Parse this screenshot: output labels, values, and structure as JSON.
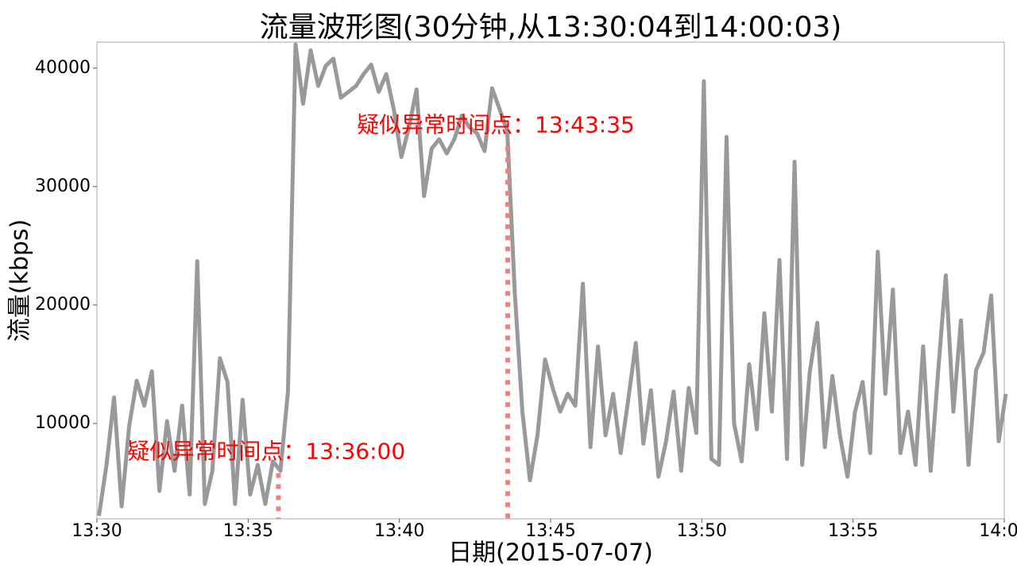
{
  "chart_data": {
    "type": "line",
    "title": "流量波形图(30分钟,从13:30:04到14:00:03)",
    "x_label": "日期(2015-07-07)",
    "y_label": "流量(kbps)",
    "x": [
      "13:30:04",
      "13:30:19",
      "13:30:34",
      "13:30:49",
      "13:31:04",
      "13:31:19",
      "13:31:34",
      "13:31:49",
      "13:32:04",
      "13:32:19",
      "13:32:34",
      "13:32:49",
      "13:33:04",
      "13:33:19",
      "13:33:34",
      "13:33:49",
      "13:34:04",
      "13:34:19",
      "13:34:34",
      "13:34:49",
      "13:35:04",
      "13:35:19",
      "13:35:34",
      "13:35:49",
      "13:36:04",
      "13:36:19",
      "13:36:34",
      "13:36:49",
      "13:37:04",
      "13:37:19",
      "13:37:34",
      "13:37:49",
      "13:38:04",
      "13:38:19",
      "13:38:34",
      "13:38:49",
      "13:39:04",
      "13:39:19",
      "13:39:34",
      "13:39:49",
      "13:40:04",
      "13:40:19",
      "13:40:34",
      "13:40:49",
      "13:41:04",
      "13:41:19",
      "13:41:34",
      "13:41:49",
      "13:42:04",
      "13:42:19",
      "13:42:34",
      "13:42:49",
      "13:43:04",
      "13:43:19",
      "13:43:34",
      "13:43:49",
      "13:44:04",
      "13:44:19",
      "13:44:34",
      "13:44:49",
      "13:45:04",
      "13:45:19",
      "13:45:34",
      "13:45:49",
      "13:46:04",
      "13:46:19",
      "13:46:34",
      "13:46:49",
      "13:47:04",
      "13:47:19",
      "13:47:34",
      "13:47:49",
      "13:48:04",
      "13:48:19",
      "13:48:34",
      "13:48:49",
      "13:49:04",
      "13:49:19",
      "13:49:34",
      "13:49:49",
      "13:50:04",
      "13:50:19",
      "13:50:34",
      "13:50:49",
      "13:51:04",
      "13:51:19",
      "13:51:34",
      "13:51:49",
      "13:52:04",
      "13:52:19",
      "13:52:34",
      "13:52:49",
      "13:53:04",
      "13:53:19",
      "13:53:34",
      "13:53:49",
      "13:54:04",
      "13:54:19",
      "13:54:34",
      "13:54:49",
      "13:55:04",
      "13:55:19",
      "13:55:34",
      "13:55:49",
      "13:56:04",
      "13:56:19",
      "13:56:34",
      "13:56:49",
      "13:57:04",
      "13:57:19",
      "13:57:34",
      "13:57:49",
      "13:58:04",
      "13:58:19",
      "13:58:34",
      "13:58:49",
      "13:59:04",
      "13:59:19",
      "13:59:34",
      "13:59:49",
      "14:00:03"
    ],
    "series": [
      {
        "name": "流量",
        "color": "#999999",
        "values": [
          2200,
          6500,
          12200,
          3000,
          9800,
          13600,
          11500,
          14400,
          4300,
          10200,
          6000,
          11500,
          4000,
          23700,
          3200,
          6000,
          15500,
          13500,
          3200,
          12000,
          4000,
          6500,
          3200,
          6800,
          6000,
          12700,
          42000,
          37000,
          41500,
          38500,
          40200,
          40800,
          37500,
          38000,
          38500,
          39500,
          40300,
          38000,
          39500,
          36500,
          32500,
          35000,
          38200,
          29200,
          33200,
          34000,
          32800,
          34000,
          36000,
          35000,
          34500,
          33000,
          38300,
          36500,
          34700,
          21000,
          11000,
          5200,
          9000,
          15400,
          13000,
          11000,
          12500,
          11500,
          21800,
          8000,
          16500,
          9000,
          12500,
          7500,
          12000,
          16800,
          8300,
          12800,
          5500,
          8500,
          12700,
          6000,
          13000,
          9200,
          38900,
          7000,
          6500,
          34200,
          10000,
          6800,
          15000,
          9500,
          19300,
          11000,
          23800,
          7000,
          32100,
          6500,
          14300,
          18500,
          8000,
          14000,
          9000,
          5500,
          11000,
          13500,
          7500,
          24500,
          12500,
          21300,
          7500,
          11000,
          6500,
          16500,
          6000,
          14500,
          22500,
          11000,
          18700,
          6500,
          14500,
          16000,
          20800,
          8500,
          12500
        ]
      }
    ],
    "xlim": [
      "13:30",
      "14:00"
    ],
    "xticks": [
      "13:30",
      "13:35",
      "13:40",
      "13:45",
      "13:50",
      "13:55",
      "14:00"
    ],
    "ylim": [
      1950,
      42200
    ],
    "yticks": [
      10000,
      20000,
      30000,
      40000
    ],
    "annotations": [
      {
        "text": "疑似异常时间点：13:36:00",
        "x": "13:36:00",
        "color": "#ff0000",
        "line_color": "#f08080"
      },
      {
        "text": "疑似异常时间点：13:43:35",
        "x": "13:43:35",
        "color": "#ff0000",
        "line_color": "#f08080"
      }
    ]
  }
}
